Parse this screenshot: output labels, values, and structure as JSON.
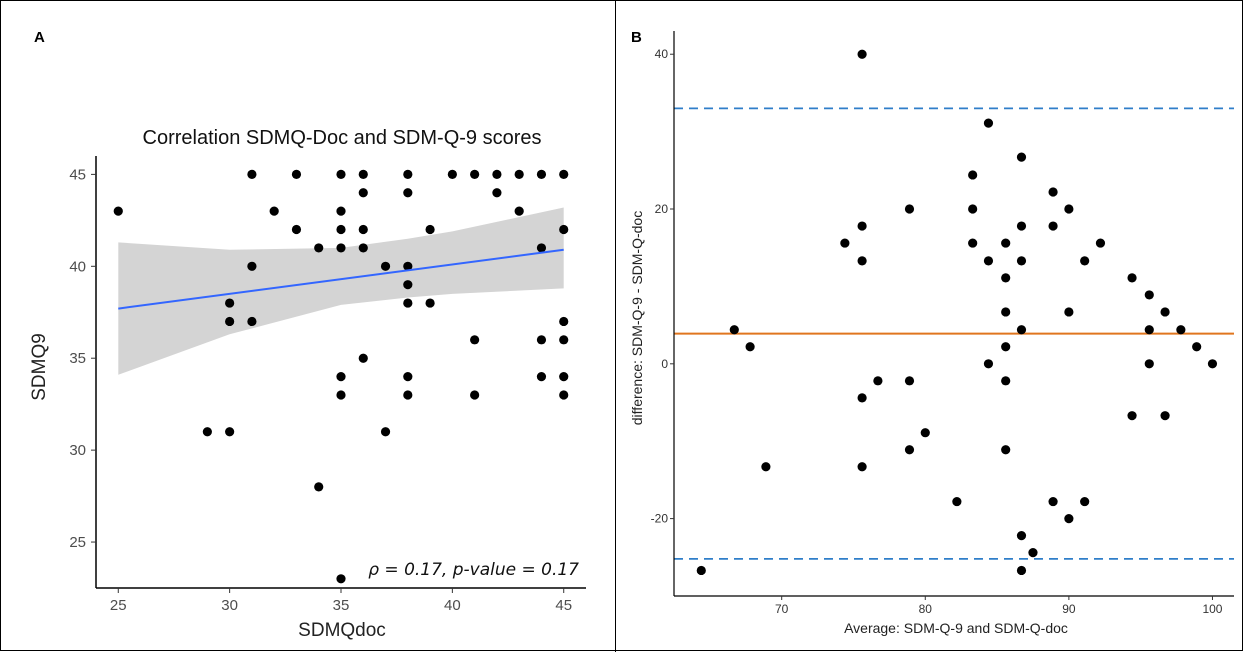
{
  "chart_data": [
    {
      "panel": "A",
      "type": "scatter",
      "title": "Correlation SDMQ-Doc and SDM-Q-9 scores",
      "xlabel": "SDMQdoc",
      "ylabel": "SDMQ9",
      "xlim": [
        24,
        46
      ],
      "ylim": [
        22.5,
        46
      ],
      "xticks": [
        25,
        30,
        35,
        40,
        45
      ],
      "yticks": [
        25,
        30,
        35,
        40,
        45
      ],
      "grid": false,
      "points": [
        [
          25,
          43
        ],
        [
          29,
          31
        ],
        [
          30,
          31
        ],
        [
          30,
          38
        ],
        [
          30,
          37
        ],
        [
          31,
          45
        ],
        [
          31,
          40
        ],
        [
          31,
          37
        ],
        [
          32,
          43
        ],
        [
          33,
          45
        ],
        [
          33,
          42
        ],
        [
          34,
          41
        ],
        [
          34,
          28
        ],
        [
          35,
          45
        ],
        [
          35,
          43
        ],
        [
          35,
          42
        ],
        [
          35,
          41
        ],
        [
          35,
          34
        ],
        [
          35,
          33
        ],
        [
          35,
          23
        ],
        [
          36,
          45
        ],
        [
          36,
          44
        ],
        [
          36,
          42
        ],
        [
          36,
          41
        ],
        [
          36,
          35
        ],
        [
          37,
          40
        ],
        [
          37,
          31
        ],
        [
          38,
          45
        ],
        [
          38,
          44
        ],
        [
          38,
          40
        ],
        [
          38,
          39
        ],
        [
          38,
          38
        ],
        [
          38,
          34
        ],
        [
          38,
          33
        ],
        [
          39,
          42
        ],
        [
          39,
          38
        ],
        [
          40,
          45
        ],
        [
          41,
          45
        ],
        [
          41,
          36
        ],
        [
          41,
          33
        ],
        [
          42,
          45
        ],
        [
          42,
          44
        ],
        [
          43,
          45
        ],
        [
          43,
          43
        ],
        [
          44,
          45
        ],
        [
          44,
          41
        ],
        [
          44,
          36
        ],
        [
          44,
          34
        ],
        [
          45,
          45
        ],
        [
          45,
          42
        ],
        [
          45,
          37
        ],
        [
          45,
          36
        ],
        [
          45,
          34
        ],
        [
          45,
          33
        ]
      ],
      "fit_line": {
        "x": [
          25,
          45
        ],
        "y": [
          37.7,
          40.9
        ],
        "color": "#3366ff"
      },
      "ci_band": {
        "x": [
          25,
          30,
          35,
          38,
          40,
          45
        ],
        "lower": [
          34.1,
          36.3,
          37.9,
          38.3,
          38.5,
          38.8
        ],
        "upper": [
          41.3,
          40.9,
          41.0,
          41.5,
          41.9,
          43.2
        ],
        "color": "#d4d4d4"
      },
      "annotation": "ρ = 0.17, p-value = 0.17"
    },
    {
      "panel": "B",
      "type": "scatter",
      "title": "",
      "xlabel": "Average: SDM-Q-9 and SDM-Q-doc",
      "ylabel": "difference: SDM-Q-9 - SDM-Q-doc",
      "xlim": [
        62.5,
        101.5
      ],
      "ylim": [
        -30,
        43
      ],
      "xticks": [
        70,
        80,
        90,
        100
      ],
      "yticks": [
        -20,
        0,
        20,
        40
      ],
      "grid": false,
      "points": [
        [
          64.4,
          -26.7
        ],
        [
          66.7,
          4.4
        ],
        [
          67.8,
          2.2
        ],
        [
          68.9,
          -13.3
        ],
        [
          74.4,
          15.6
        ],
        [
          75.6,
          40
        ],
        [
          75.6,
          17.8
        ],
        [
          75.6,
          13.3
        ],
        [
          75.6,
          -4.4
        ],
        [
          75.6,
          -13.3
        ],
        [
          76.7,
          -2.2
        ],
        [
          78.9,
          20
        ],
        [
          78.9,
          -2.2
        ],
        [
          78.9,
          -11.1
        ],
        [
          80,
          -8.9
        ],
        [
          82.2,
          -17.8
        ],
        [
          83.3,
          24.4
        ],
        [
          83.3,
          20
        ],
        [
          83.3,
          15.6
        ],
        [
          84.4,
          31.1
        ],
        [
          84.4,
          13.3
        ],
        [
          84.4,
          0
        ],
        [
          85.6,
          15.6
        ],
        [
          85.6,
          11.1
        ],
        [
          85.6,
          6.7
        ],
        [
          85.6,
          2.2
        ],
        [
          85.6,
          -2.2
        ],
        [
          85.6,
          -11.1
        ],
        [
          86.7,
          26.7
        ],
        [
          86.7,
          17.8
        ],
        [
          86.7,
          13.3
        ],
        [
          86.7,
          4.4
        ],
        [
          86.7,
          -22.2
        ],
        [
          86.7,
          -26.7
        ],
        [
          87.5,
          -24.4
        ],
        [
          88.9,
          22.2
        ],
        [
          88.9,
          17.8
        ],
        [
          88.9,
          -17.8
        ],
        [
          90,
          20
        ],
        [
          90,
          6.7
        ],
        [
          90,
          -20
        ],
        [
          91.1,
          13.3
        ],
        [
          91.1,
          -17.8
        ],
        [
          92.2,
          15.6
        ],
        [
          94.4,
          11.1
        ],
        [
          94.4,
          -6.7
        ],
        [
          95.6,
          8.9
        ],
        [
          95.6,
          4.4
        ],
        [
          95.6,
          0
        ],
        [
          96.7,
          6.7
        ],
        [
          96.7,
          -6.7
        ],
        [
          97.8,
          4.4
        ],
        [
          98.9,
          2.2
        ],
        [
          100,
          0
        ]
      ],
      "mean_line": {
        "y": 3.9,
        "color": "#e0761f"
      },
      "limits": {
        "upper": 33,
        "lower": -25.2,
        "color": "#2f7ec9"
      }
    }
  ]
}
